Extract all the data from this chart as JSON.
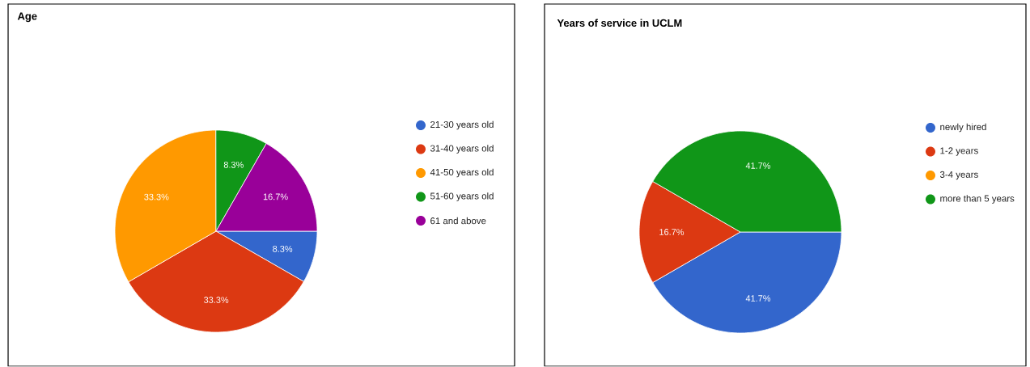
{
  "chart_data": [
    {
      "type": "pie",
      "title": "Age",
      "categories": [
        "21-30 years old",
        "31-40 years old",
        "41-50 years old",
        "51-60 years old",
        "61 and above"
      ],
      "values": [
        8.3,
        33.3,
        33.3,
        8.3,
        16.7
      ],
      "colors": [
        "#3366cc",
        "#dc3912",
        "#ff9900",
        "#109618",
        "#990099"
      ],
      "value_labels": [
        "8.3%",
        "33.3%",
        "33.3%",
        "8.3%",
        "16.7%"
      ],
      "legend": "right"
    },
    {
      "type": "pie",
      "title": "Years of service in UCLM",
      "categories": [
        "newly hired",
        "1-2 years",
        "3-4 years",
        "more than 5 years"
      ],
      "values": [
        41.7,
        16.7,
        0,
        41.7
      ],
      "colors": [
        "#3366cc",
        "#dc3912",
        "#ff9900",
        "#109618"
      ],
      "value_labels": [
        "41.7%",
        "16.7%",
        null,
        "41.7%"
      ],
      "legend": "right"
    }
  ]
}
